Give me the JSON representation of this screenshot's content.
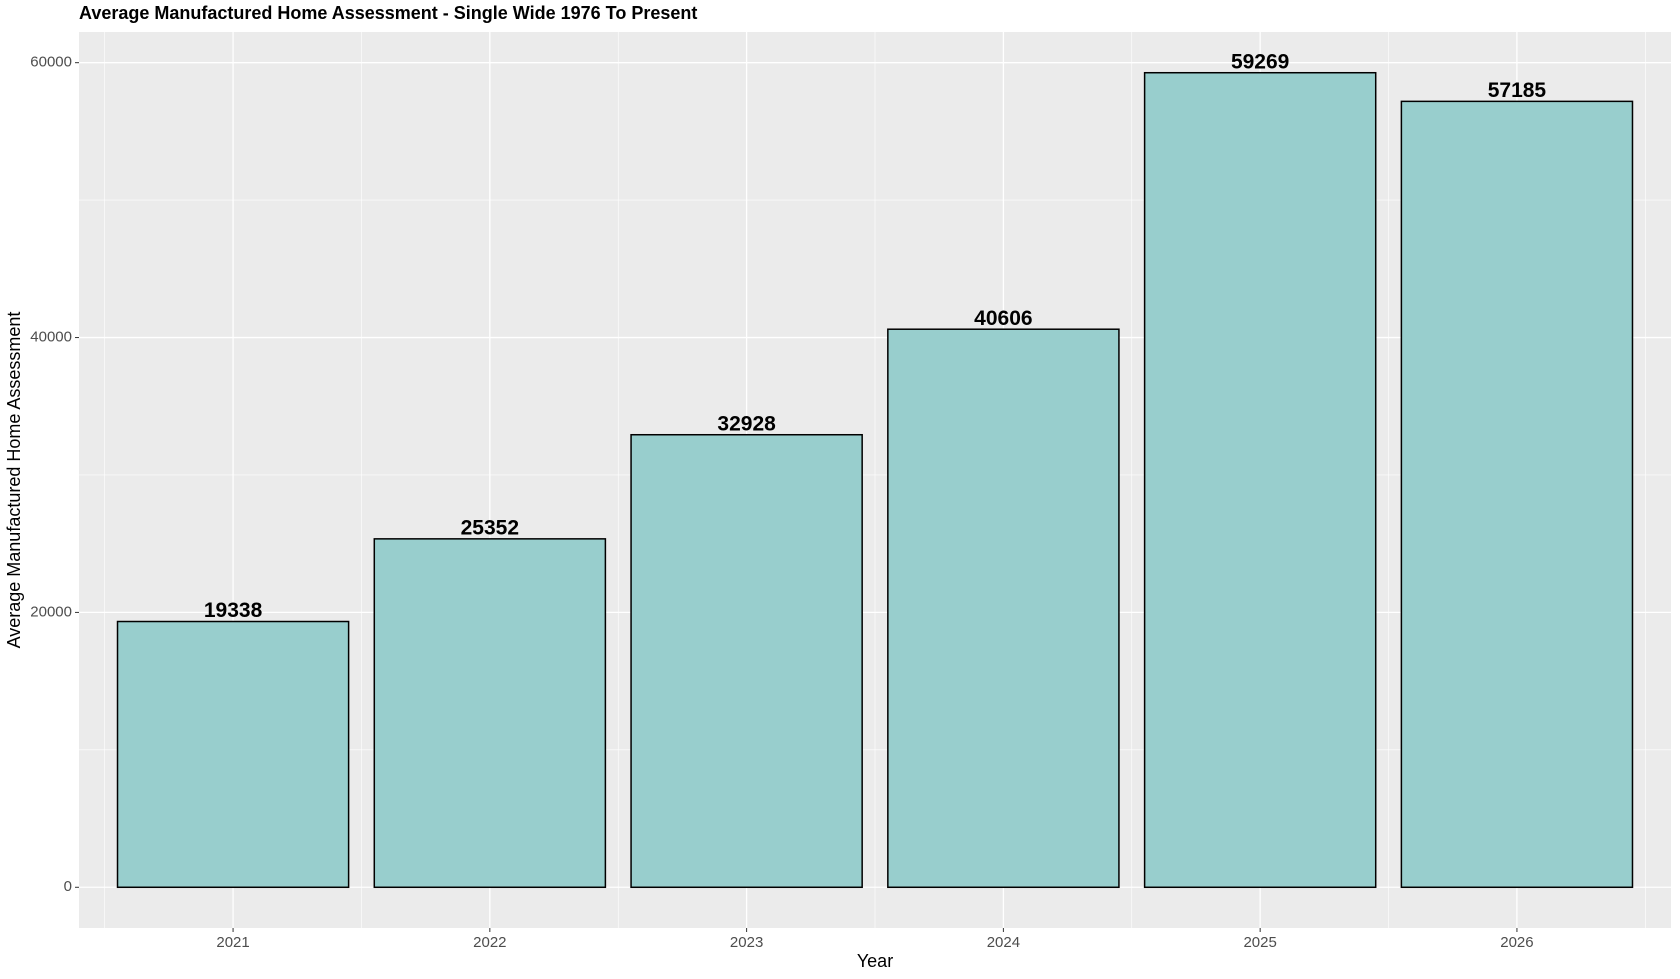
{
  "chart_data": {
    "type": "bar",
    "title": "Average Manufactured Home Assessment - Single Wide 1976 To Present",
    "x_label": "Year",
    "y_label": "Average Manufactured Home Assessment",
    "categories": [
      "2021",
      "2022",
      "2023",
      "2024",
      "2025",
      "2026"
    ],
    "values": [
      19338,
      25352,
      32928,
      40606,
      59269,
      57185
    ],
    "color": "#98cecd",
    "ylim": [
      -2963,
      62232
    ],
    "yticks": [
      0,
      20000,
      40000,
      60000
    ],
    "grid": true
  }
}
